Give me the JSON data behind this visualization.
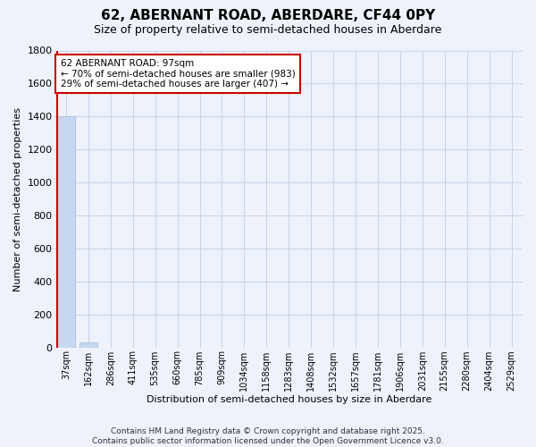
{
  "title": "62, ABERNANT ROAD, ABERDARE, CF44 0PY",
  "subtitle": "Size of property relative to semi-detached houses in Aberdare",
  "xlabel": "Distribution of semi-detached houses by size in Aberdare",
  "ylabel": "Number of semi-detached properties",
  "categories": [
    "37sqm",
    "162sqm",
    "286sqm",
    "411sqm",
    "535sqm",
    "660sqm",
    "785sqm",
    "909sqm",
    "1034sqm",
    "1158sqm",
    "1283sqm",
    "1408sqm",
    "1532sqm",
    "1657sqm",
    "1781sqm",
    "1906sqm",
    "2031sqm",
    "2155sqm",
    "2280sqm",
    "2404sqm",
    "2529sqm"
  ],
  "values": [
    1400,
    30,
    0,
    0,
    0,
    0,
    0,
    0,
    0,
    0,
    0,
    0,
    0,
    0,
    0,
    0,
    0,
    0,
    0,
    0,
    0
  ],
  "bar_color": "#c5d8f0",
  "bar_edge_color": "#a0b8d8",
  "property_label": "62 ABERNANT ROAD: 97sqm",
  "pct_smaller": 70,
  "n_smaller": 983,
  "pct_larger": 29,
  "n_larger": 407,
  "red_line_x": -0.5,
  "ylim": [
    0,
    1800
  ],
  "yticks": [
    0,
    200,
    400,
    600,
    800,
    1000,
    1200,
    1400,
    1600,
    1800
  ],
  "bg_color": "#edf2fb",
  "grid_color": "#c8d4e8",
  "red_color": "#cc0000",
  "footer_line1": "Contains HM Land Registry data © Crown copyright and database right 2025.",
  "footer_line2": "Contains public sector information licensed under the Open Government Licence v3.0.",
  "title_fontsize": 11,
  "subtitle_fontsize": 9,
  "ylabel_fontsize": 8,
  "xlabel_fontsize": 8,
  "tick_fontsize": 7,
  "footer_fontsize": 6.5
}
